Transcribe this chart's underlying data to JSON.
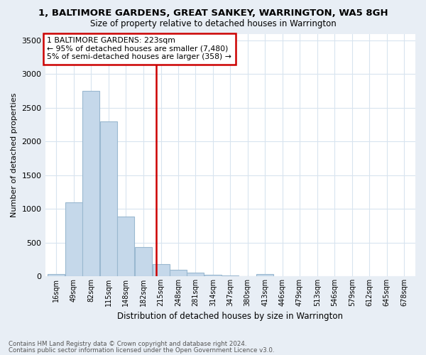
{
  "title": "1, BALTIMORE GARDENS, GREAT SANKEY, WARRINGTON, WA5 8GH",
  "subtitle": "Size of property relative to detached houses in Warrington",
  "xlabel": "Distribution of detached houses by size in Warrington",
  "ylabel": "Number of detached properties",
  "footnote1": "Contains HM Land Registry data © Crown copyright and database right 2024.",
  "footnote2": "Contains public sector information licensed under the Open Government Licence v3.0.",
  "annotation_line1": "1 BALTIMORE GARDENS: 223sqm",
  "annotation_line2": "← 95% of detached houses are smaller (7,480)",
  "annotation_line3": "5% of semi-detached houses are larger (358) →",
  "subject_value": 223,
  "bar_edges": [
    16,
    49,
    82,
    115,
    148,
    182,
    215,
    248,
    281,
    314,
    347,
    380,
    413,
    446,
    479,
    513,
    546,
    579,
    612,
    645,
    678
  ],
  "bar_labels": [
    "16sqm",
    "49sqm",
    "82sqm",
    "115sqm",
    "148sqm",
    "182sqm",
    "215sqm",
    "248sqm",
    "281sqm",
    "314sqm",
    "347sqm",
    "380sqm",
    "413sqm",
    "446sqm",
    "479sqm",
    "513sqm",
    "546sqm",
    "579sqm",
    "612sqm",
    "645sqm",
    "678sqm"
  ],
  "bar_heights": [
    30,
    1100,
    2750,
    2300,
    890,
    430,
    175,
    100,
    55,
    25,
    10,
    5,
    30,
    0,
    0,
    0,
    0,
    0,
    0,
    0
  ],
  "bar_color": "#c5d8ea",
  "bar_edge_color": "#9ab8d0",
  "vline_x": 223,
  "vline_color": "#cc0000",
  "annotation_box_color": "#cc0000",
  "annotation_box_fill": "#ffffff",
  "grid_color": "#d8e4ef",
  "background_color": "#e8eef5",
  "plot_bg_color": "#ffffff",
  "ylim": [
    0,
    3600
  ],
  "yticks": [
    0,
    500,
    1000,
    1500,
    2000,
    2500,
    3000,
    3500
  ]
}
